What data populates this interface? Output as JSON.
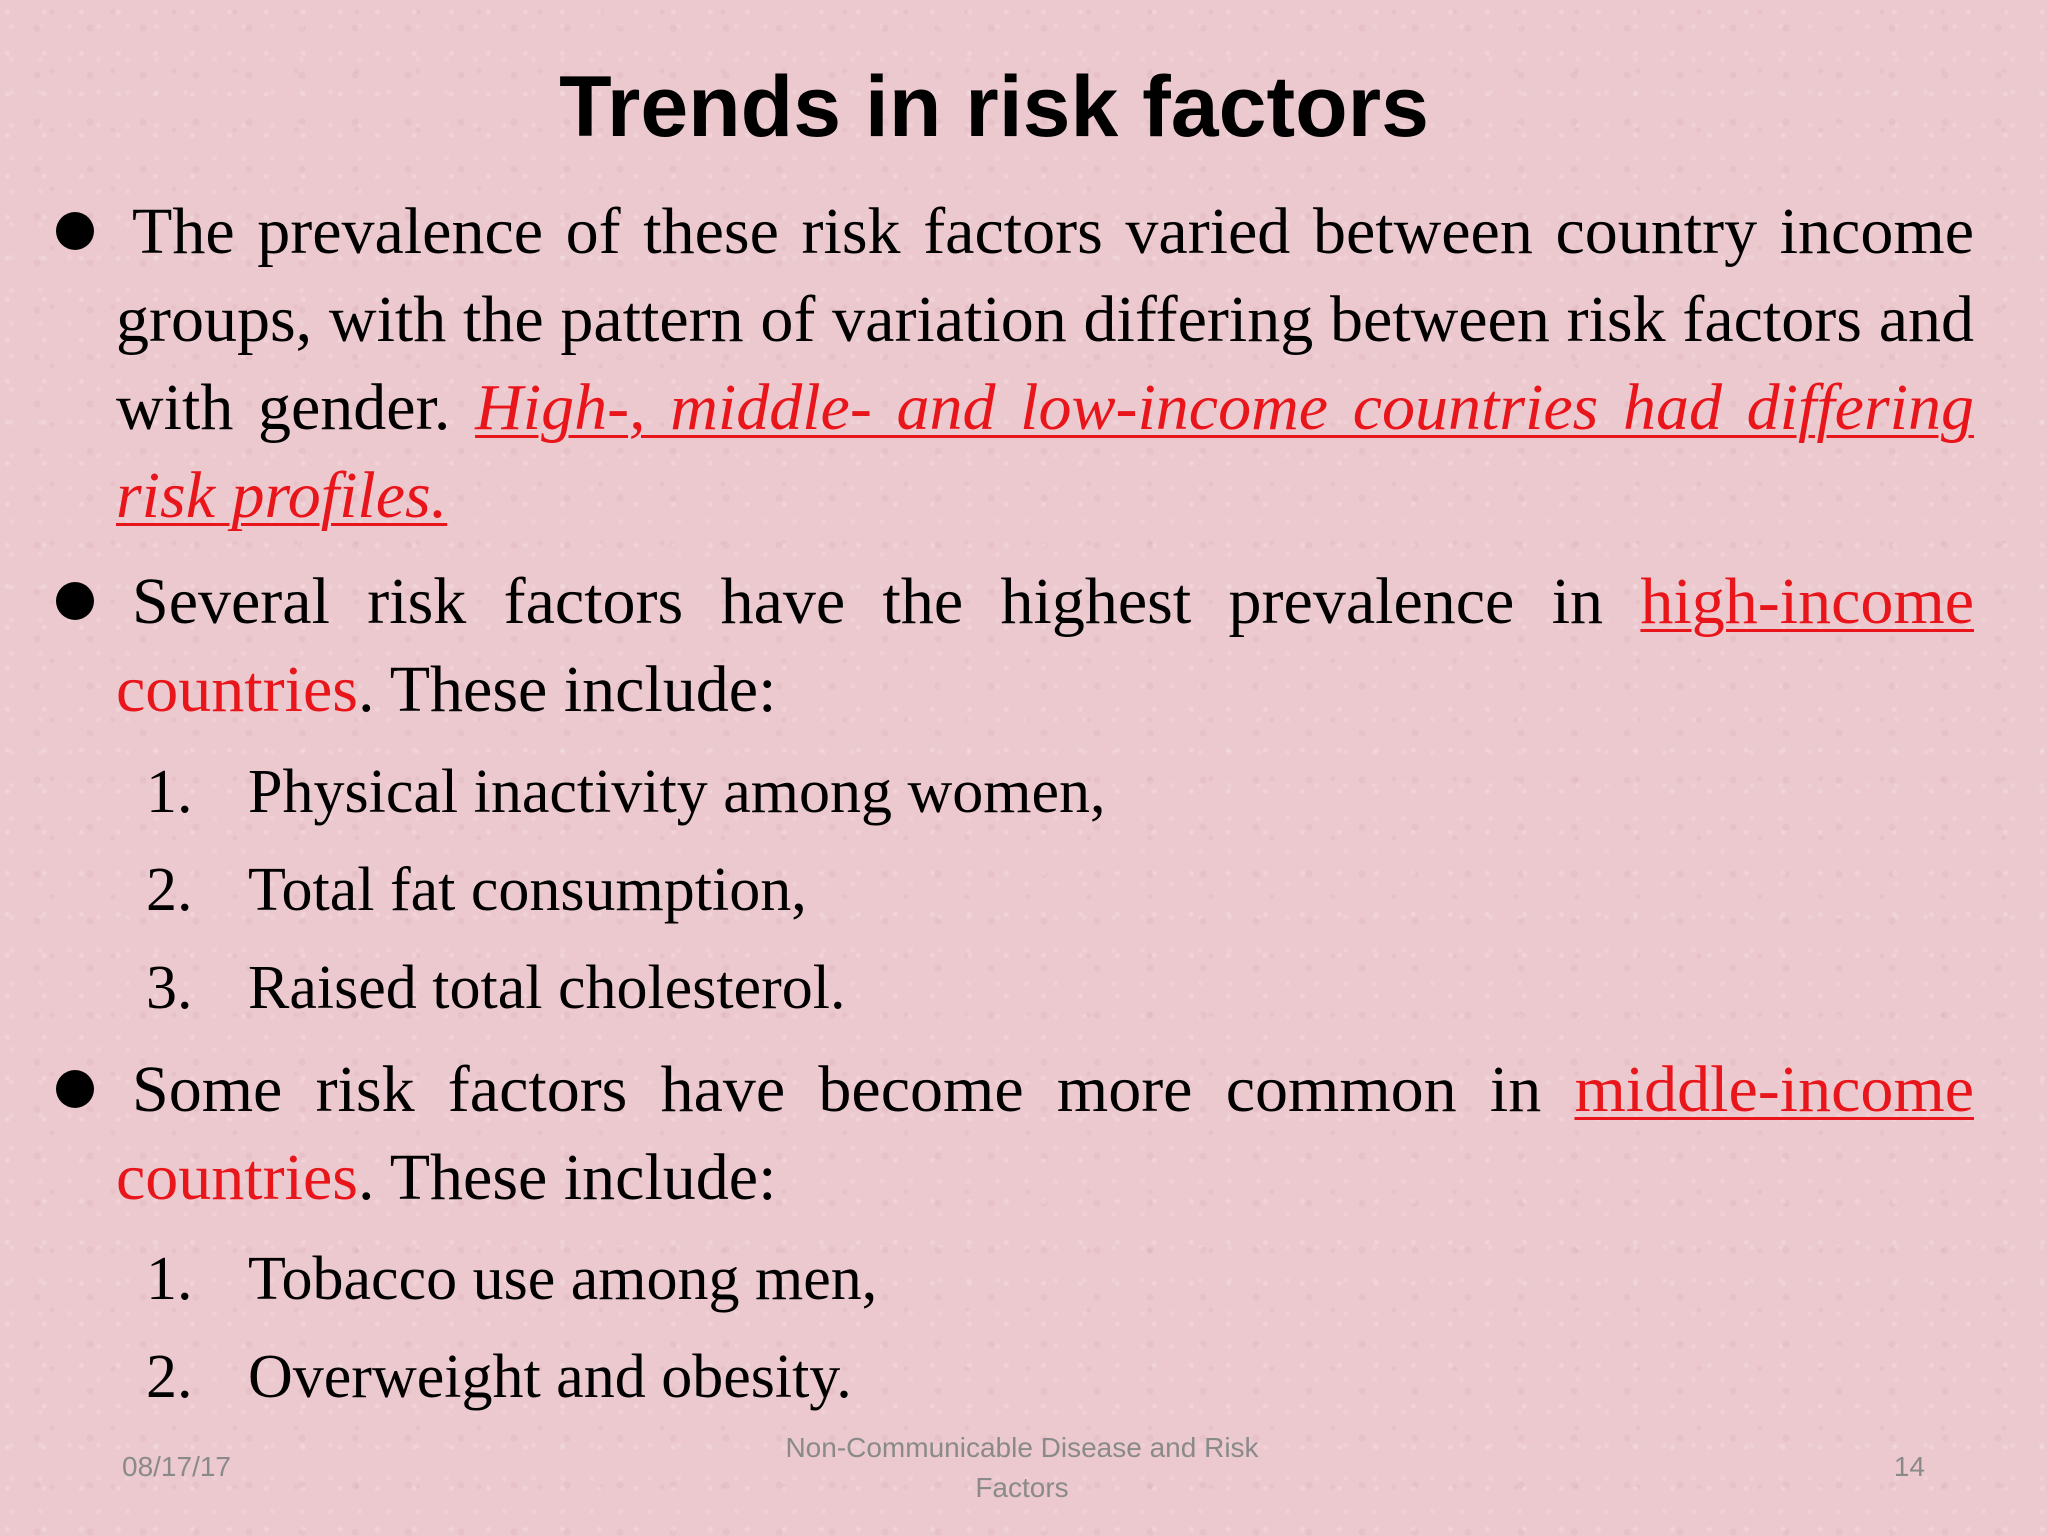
{
  "slide": {
    "title": "Trends in risk factors",
    "bullet1": {
      "text_plain": "The prevalence of these risk factors varied between country income groups, with the pattern of variation differing between risk factors and with gender. ",
      "text_emphasis": "High-, middle- and low-income countries had differing risk profiles. "
    },
    "bullet2": {
      "text_lead": "Several risk factors have the highest prevalence in ",
      "link_underlined": "high-income ",
      "link_plain": "countries",
      "text_tail": ". These include:"
    },
    "list1": [
      {
        "num": "1.",
        "text": "Physical inactivity among women,"
      },
      {
        "num": "2.",
        "text": "Total fat consumption,"
      },
      {
        "num": "3.",
        "text": "Raised total cholesterol."
      }
    ],
    "bullet3": {
      "text_lead": "Some risk factors have become more common in ",
      "link_underlined": "middle-income",
      "link_plain": " countries",
      "text_tail": ". These include:"
    },
    "list2": [
      {
        "num": "1.",
        "text": "Tobacco use among men,"
      },
      {
        "num": "2.",
        "text": "Overweight and obesity."
      }
    ],
    "footer": {
      "date": "08/17/17",
      "center": "Non-Communicable Disease and Risk Factors",
      "page": "14"
    }
  },
  "colors": {
    "background": "#ecc9cf",
    "emphasis_red": "#e8151b",
    "footer_gray": "#8a8a8a"
  }
}
